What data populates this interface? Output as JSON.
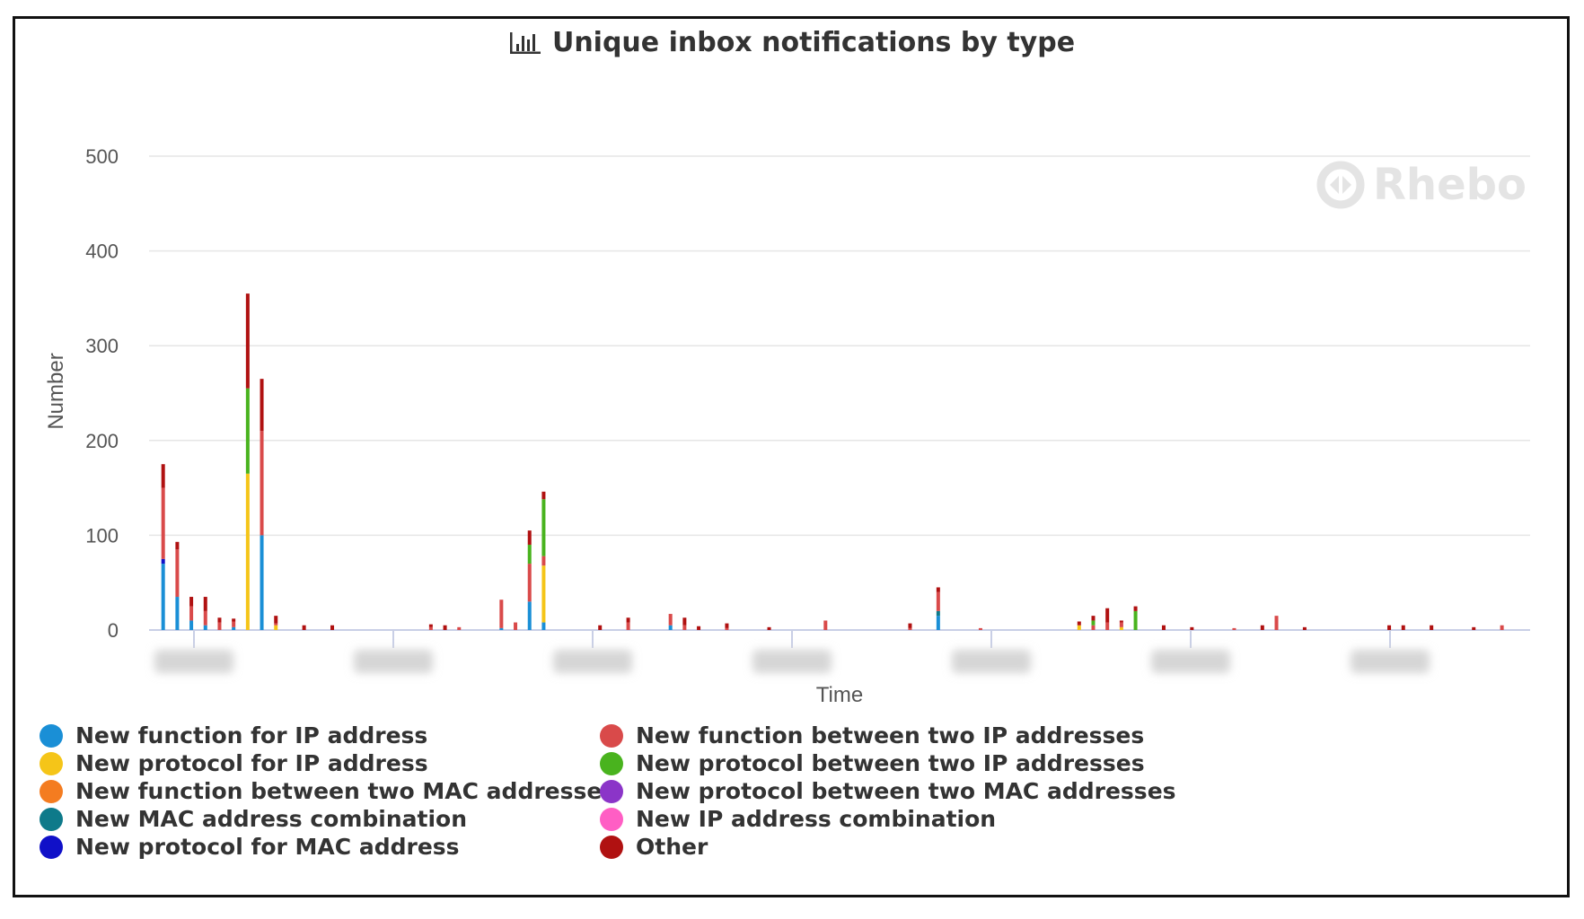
{
  "chart_data": {
    "type": "bar",
    "stacked": true,
    "title": "Unique inbox notifications by type",
    "xlabel": "Time",
    "ylabel": "Number",
    "ylim": [
      0,
      500
    ],
    "yticks": [
      0,
      100,
      200,
      300,
      400,
      500
    ],
    "grid": true,
    "legend_position": "bottom",
    "x_tick_labels": [
      "",
      "",
      "",
      "",
      "",
      "",
      ""
    ],
    "x": [
      1,
      2,
      3,
      4,
      5,
      6,
      7,
      8,
      9,
      11,
      13,
      20,
      21,
      22,
      25,
      26,
      27,
      28,
      32,
      34,
      37,
      38,
      39,
      41,
      44,
      48,
      54,
      56,
      59,
      66,
      67,
      68,
      69,
      70,
      72,
      74,
      77,
      79,
      80,
      82,
      88,
      89,
      91,
      94,
      96
    ],
    "series": [
      {
        "name": "New function for IP address",
        "color": "#1a8fd6",
        "values": [
          70,
          35,
          10,
          5,
          0,
          3,
          0,
          100,
          0,
          0,
          0,
          0,
          0,
          0,
          2,
          0,
          30,
          8,
          0,
          0,
          5,
          0,
          0,
          0,
          0,
          0,
          0,
          15,
          0,
          0,
          0,
          0,
          0,
          0,
          0,
          0,
          0,
          0,
          0,
          0,
          0,
          0,
          0,
          0,
          0
        ]
      },
      {
        "name": "New protocol for IP address",
        "color": "#f5c518",
        "values": [
          0,
          0,
          0,
          0,
          0,
          0,
          165,
          0,
          5,
          0,
          0,
          0,
          0,
          0,
          0,
          0,
          0,
          60,
          0,
          0,
          0,
          0,
          0,
          0,
          0,
          0,
          0,
          0,
          0,
          5,
          0,
          0,
          3,
          0,
          0,
          0,
          0,
          0,
          0,
          0,
          0,
          0,
          0,
          0,
          0
        ]
      },
      {
        "name": "New function between two MAC addresses",
        "color": "#f47c20",
        "values": [
          0,
          0,
          0,
          0,
          0,
          0,
          0,
          0,
          0,
          0,
          0,
          0,
          0,
          0,
          0,
          0,
          0,
          0,
          0,
          0,
          0,
          0,
          0,
          0,
          0,
          0,
          0,
          0,
          0,
          0,
          0,
          0,
          0,
          0,
          0,
          0,
          0,
          0,
          0,
          0,
          0,
          0,
          0,
          0,
          0
        ]
      },
      {
        "name": "New MAC address combination",
        "color": "#0e7a8a",
        "values": [
          0,
          0,
          0,
          0,
          0,
          0,
          0,
          0,
          0,
          0,
          0,
          0,
          0,
          0,
          0,
          0,
          0,
          0,
          0,
          0,
          0,
          0,
          0,
          0,
          0,
          0,
          0,
          5,
          0,
          0,
          0,
          0,
          0,
          0,
          0,
          0,
          0,
          0,
          0,
          0,
          0,
          0,
          0,
          0,
          0
        ]
      },
      {
        "name": "New protocol for MAC address",
        "color": "#1010c8",
        "values": [
          5,
          0,
          0,
          0,
          0,
          0,
          0,
          0,
          0,
          0,
          0,
          0,
          0,
          0,
          0,
          0,
          0,
          0,
          0,
          0,
          0,
          0,
          0,
          0,
          0,
          0,
          0,
          0,
          0,
          0,
          0,
          0,
          0,
          0,
          0,
          0,
          0,
          0,
          0,
          0,
          0,
          0,
          0,
          0,
          0
        ]
      },
      {
        "name": "New function between two IP addresses",
        "color": "#d94a4a",
        "values": [
          75,
          50,
          15,
          15,
          8,
          6,
          0,
          110,
          2,
          0,
          0,
          3,
          0,
          3,
          30,
          8,
          40,
          10,
          0,
          8,
          12,
          5,
          0,
          2,
          0,
          10,
          2,
          20,
          2,
          0,
          5,
          8,
          5,
          0,
          0,
          0,
          2,
          0,
          15,
          0,
          0,
          0,
          0,
          0,
          5
        ]
      },
      {
        "name": "New protocol between two IP addresses",
        "color": "#49b31e",
        "values": [
          0,
          0,
          0,
          0,
          0,
          0,
          90,
          0,
          0,
          0,
          0,
          0,
          0,
          0,
          0,
          0,
          20,
          60,
          0,
          0,
          0,
          0,
          0,
          0,
          0,
          0,
          0,
          0,
          0,
          0,
          5,
          0,
          0,
          20,
          0,
          0,
          0,
          0,
          0,
          0,
          0,
          0,
          0,
          0,
          0
        ]
      },
      {
        "name": "New protocol between two MAC addresses",
        "color": "#8b35c8",
        "values": [
          0,
          0,
          0,
          0,
          0,
          0,
          0,
          0,
          0,
          0,
          0,
          0,
          0,
          0,
          0,
          0,
          0,
          0,
          0,
          0,
          0,
          0,
          0,
          0,
          0,
          0,
          0,
          0,
          0,
          0,
          0,
          0,
          0,
          0,
          0,
          0,
          0,
          0,
          0,
          0,
          0,
          0,
          0,
          0,
          0
        ]
      },
      {
        "name": "New IP address combination",
        "color": "#ff5ec4",
        "values": [
          0,
          0,
          0,
          0,
          0,
          0,
          0,
          0,
          0,
          0,
          0,
          0,
          0,
          0,
          0,
          0,
          0,
          0,
          0,
          0,
          0,
          0,
          0,
          0,
          0,
          0,
          0,
          0,
          0,
          0,
          0,
          0,
          0,
          0,
          0,
          0,
          0,
          0,
          0,
          0,
          0,
          0,
          0,
          0,
          0
        ]
      },
      {
        "name": "Other",
        "color": "#b01111",
        "values": [
          25,
          8,
          10,
          15,
          5,
          3,
          100,
          55,
          8,
          5,
          5,
          3,
          5,
          0,
          0,
          0,
          15,
          8,
          5,
          5,
          0,
          8,
          4,
          5,
          3,
          0,
          5,
          5,
          0,
          4,
          5,
          15,
          2,
          5,
          5,
          3,
          0,
          5,
          0,
          3,
          5,
          5,
          5,
          3,
          0
        ]
      }
    ]
  }
}
